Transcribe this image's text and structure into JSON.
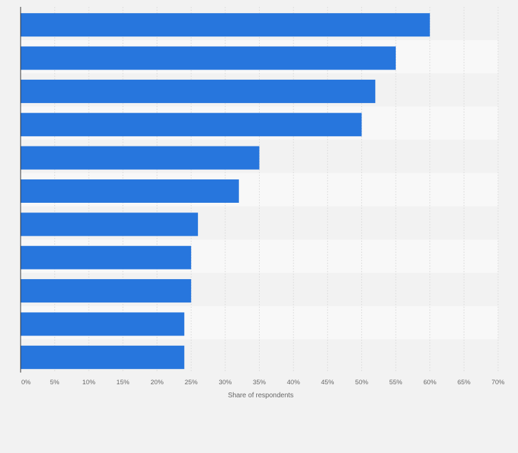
{
  "chart_data": {
    "type": "bar",
    "orientation": "horizontal",
    "categories": [
      "",
      "",
      "",
      "",
      "",
      "",
      "",
      "",
      "",
      "",
      ""
    ],
    "values": [
      60,
      55,
      52,
      50,
      35,
      32,
      26,
      25,
      25,
      24,
      24
    ],
    "xlim": [
      0,
      70
    ],
    "x_ticks": [
      0,
      5,
      10,
      15,
      20,
      25,
      30,
      35,
      40,
      45,
      50,
      55,
      60,
      65,
      70
    ],
    "x_tick_labels": [
      "0%",
      "5%",
      "10%",
      "15%",
      "20%",
      "25%",
      "30%",
      "35%",
      "40%",
      "45%",
      "50%",
      "55%",
      "60%",
      "65%",
      "70%"
    ],
    "xlabel": "Share of respondents",
    "ylabel": "",
    "title": "",
    "grid": true,
    "bar_color": "#2776dd",
    "band_colors": [
      "#f2f2f2",
      "#f8f8f8"
    ],
    "gridline_color": "#dddddd",
    "axis_color": "#333333"
  }
}
